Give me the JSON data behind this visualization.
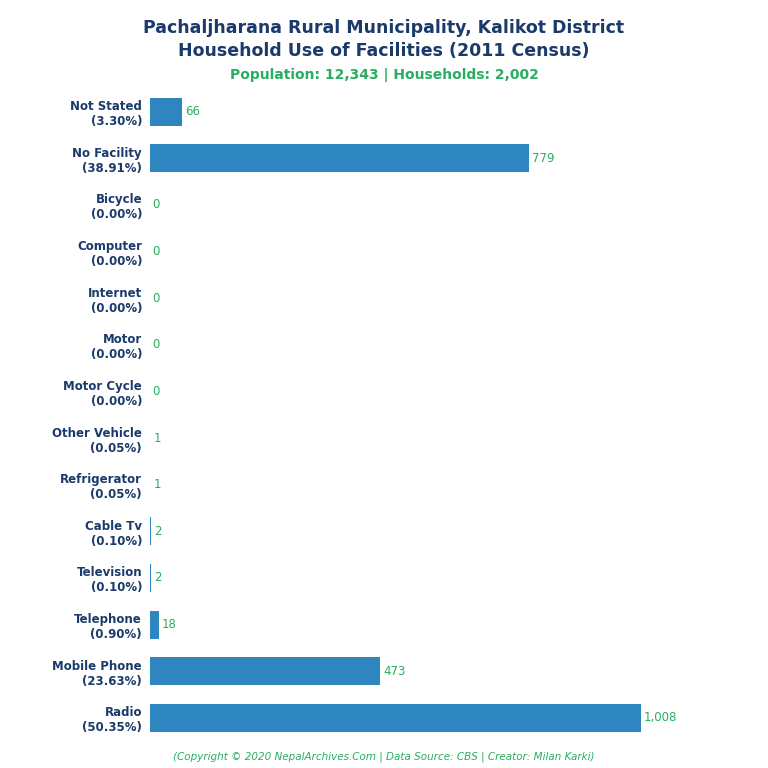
{
  "title_line1": "Pachaljharana Rural Municipality, Kalikot District",
  "title_line2": "Household Use of Facilities (2011 Census)",
  "subtitle": "Population: 12,343 | Households: 2,002",
  "copyright": "(Copyright © 2020 NepalArchives.Com | Data Source: CBS | Creator: Milan Karki)",
  "categories": [
    "Not Stated\n(3.30%)",
    "No Facility\n(38.91%)",
    "Bicycle\n(0.00%)",
    "Computer\n(0.00%)",
    "Internet\n(0.00%)",
    "Motor\n(0.00%)",
    "Motor Cycle\n(0.00%)",
    "Other Vehicle\n(0.05%)",
    "Refrigerator\n(0.05%)",
    "Cable Tv\n(0.10%)",
    "Television\n(0.10%)",
    "Telephone\n(0.90%)",
    "Mobile Phone\n(23.63%)",
    "Radio\n(50.35%)"
  ],
  "values": [
    66,
    779,
    0,
    0,
    0,
    0,
    0,
    1,
    1,
    2,
    2,
    18,
    473,
    1008
  ],
  "bar_color": "#2e86c1",
  "value_color": "#27ae60",
  "title_color": "#1a3a6b",
  "subtitle_color": "#27ae60",
  "copyright_color": "#27ae60",
  "background_color": "#ffffff",
  "title_fontsize": 12.5,
  "subtitle_fontsize": 10,
  "label_fontsize": 8.5,
  "value_fontsize": 8.5,
  "copyright_fontsize": 7.5
}
